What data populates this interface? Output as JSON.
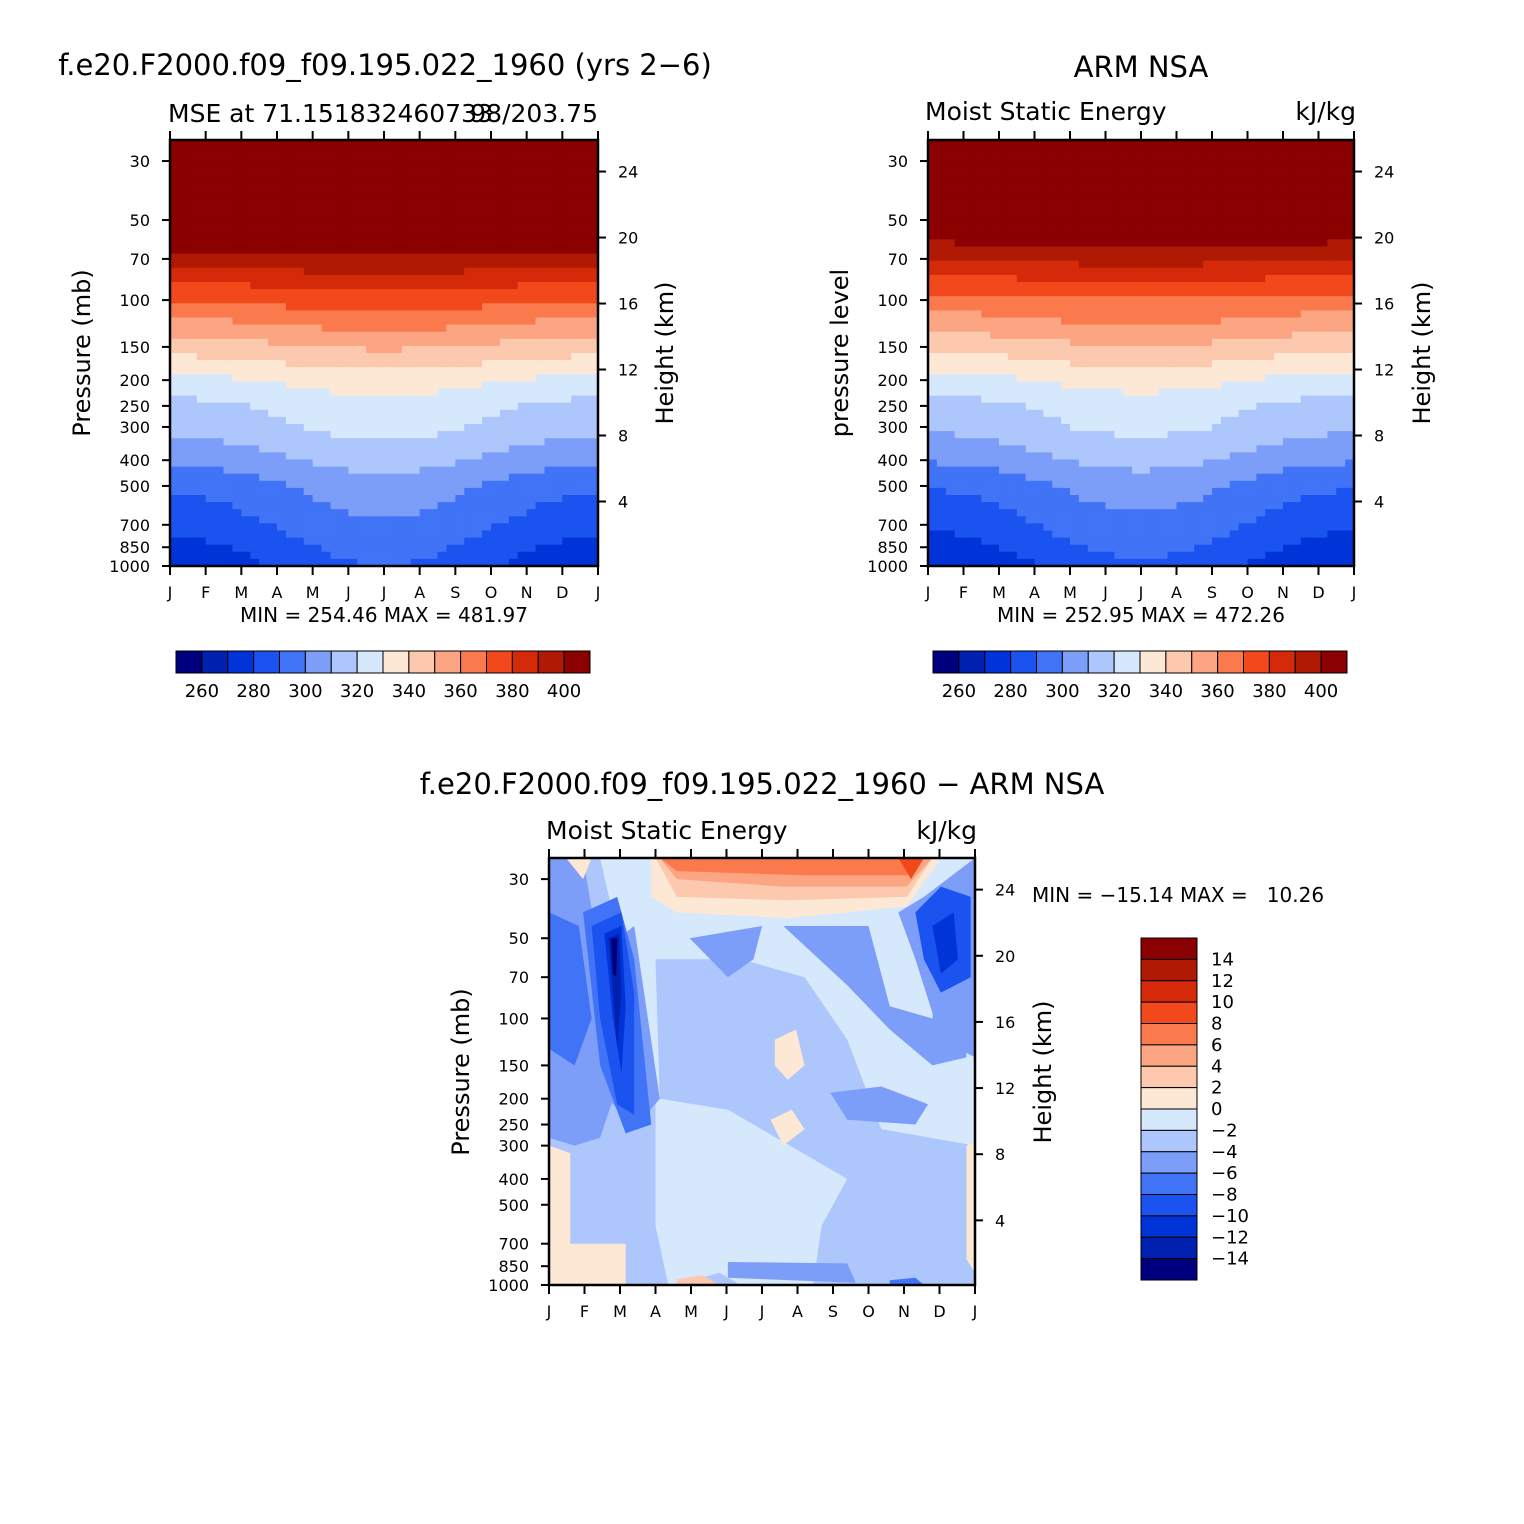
{
  "chart_data": [
    {
      "id": "model",
      "type": "heatmap",
      "title": "f.e20.F2000.f09_f09.195.022_1960 (yrs 2−6)",
      "subtitle_left": "MSE at 71.151832460733",
      "subtitle_right": "98/203.75",
      "ylabel": "Pressure (mb)",
      "ylabel_right": "Height (km)",
      "x_months": [
        "J",
        "F",
        "M",
        "A",
        "M",
        "J",
        "J",
        "A",
        "S",
        "O",
        "N",
        "D",
        "J"
      ],
      "y_pressure_ticks": [
        30,
        50,
        70,
        100,
        150,
        200,
        250,
        300,
        400,
        500,
        700,
        850,
        1000
      ],
      "y_height_ticks": [
        4,
        8,
        12,
        16,
        20,
        24
      ],
      "minmax_label": "MIN = 254.46 MAX = 481.97",
      "colorbar_levels": [
        260,
        280,
        300,
        320,
        340,
        360,
        380,
        400
      ],
      "colorbar_colors": [
        "#00007f",
        "#0020b0",
        "#0034d8",
        "#1a53ef",
        "#4073f5",
        "#7c9ef8",
        "#adc6fb",
        "#d6e8fc",
        "#fde8d6",
        "#fcc8ae",
        "#fca583",
        "#fa7a4e",
        "#f1491b",
        "#d42a0a",
        "#b01a05",
        "#8b0000"
      ],
      "profile_pressures": [
        1000,
        850,
        700,
        500,
        400,
        300,
        250,
        200,
        150,
        100,
        70,
        50,
        30
      ],
      "profile_values": [
        272,
        277,
        283,
        292,
        302,
        313,
        317,
        327,
        345,
        370,
        395,
        420,
        470
      ],
      "season_amplitude": 18
    },
    {
      "id": "obs",
      "type": "heatmap",
      "title": "ARM NSA",
      "subtitle_left": "Moist Static Energy",
      "subtitle_right": "kJ/kg",
      "ylabel": "pressure level",
      "ylabel_right": "Height (km)",
      "x_months": [
        "J",
        "F",
        "M",
        "A",
        "M",
        "J",
        "J",
        "A",
        "S",
        "O",
        "N",
        "D",
        "J"
      ],
      "y_pressure_ticks": [
        30,
        50,
        70,
        100,
        150,
        200,
        250,
        300,
        400,
        500,
        700,
        850,
        1000
      ],
      "y_height_ticks": [
        4,
        8,
        12,
        16,
        20,
        24
      ],
      "minmax_label": "MIN = 252.95 MAX = 472.26",
      "colorbar_levels": [
        260,
        280,
        300,
        320,
        340,
        360,
        380,
        400
      ],
      "colorbar_colors": [
        "#00007f",
        "#0020b0",
        "#0034d8",
        "#1a53ef",
        "#4073f5",
        "#7c9ef8",
        "#adc6fb",
        "#d6e8fc",
        "#fde8d6",
        "#fcc8ae",
        "#fca583",
        "#fa7a4e",
        "#f1491b",
        "#d42a0a",
        "#b01a05",
        "#8b0000"
      ],
      "profile_pressures": [
        1000,
        850,
        700,
        500,
        400,
        300,
        250,
        200,
        150,
        100,
        70,
        50,
        30
      ],
      "profile_values": [
        270,
        276,
        282,
        291,
        301,
        312,
        316,
        326,
        343,
        366,
        390,
        414,
        465
      ],
      "season_amplitude": 18
    },
    {
      "id": "diff",
      "type": "heatmap",
      "title": "f.e20.F2000.f09_f09.195.022_1960 − ARM NSA",
      "subtitle_left": "Moist Static Energy",
      "subtitle_right": "kJ/kg",
      "ylabel": "Pressure (mb)",
      "ylabel_right": "Height (km)",
      "x_months": [
        "J",
        "F",
        "M",
        "A",
        "M",
        "J",
        "J",
        "A",
        "S",
        "O",
        "N",
        "D",
        "J"
      ],
      "y_pressure_ticks": [
        30,
        50,
        70,
        100,
        150,
        200,
        250,
        300,
        400,
        500,
        700,
        850,
        1000
      ],
      "y_height_ticks": [
        4,
        8,
        12,
        16,
        20,
        24
      ],
      "minmax_label": "MIN = −15.14 MAX =   10.26",
      "colorbar_levels": [
        14,
        12,
        10,
        8,
        6,
        4,
        2,
        0,
        -2,
        -4,
        -6,
        -8,
        -10,
        -12,
        -14
      ],
      "colorbar_labels": [
        "14",
        "12",
        "10",
        "8",
        "6",
        "4",
        "2",
        "0",
        "−2",
        "−4",
        "−6",
        "−8",
        "−10",
        "−12",
        "−14"
      ],
      "colorbar_colors": [
        "#8b0000",
        "#b01a05",
        "#d42a0a",
        "#f1491b",
        "#fa7a4e",
        "#fca583",
        "#fcc8ae",
        "#fde8d6",
        "#d6e8fc",
        "#adc6fb",
        "#7c9ef8",
        "#4073f5",
        "#1a53ef",
        "#0034d8",
        "#0020b0",
        "#00007f"
      ]
    }
  ]
}
